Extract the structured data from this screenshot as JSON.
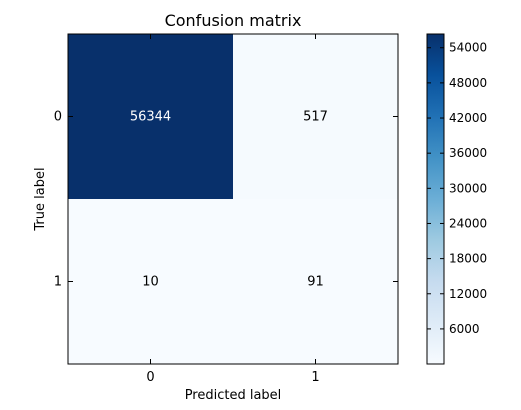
{
  "chart_data": {
    "type": "heatmap",
    "title": "Confusion matrix",
    "xlabel": "Predicted label",
    "ylabel": "True label",
    "x_categories": [
      "0",
      "1"
    ],
    "y_categories": [
      "0",
      "1"
    ],
    "matrix": [
      [
        56344,
        517
      ],
      [
        10,
        91
      ]
    ],
    "colormap": "Blues",
    "color_range": [
      10,
      56344
    ],
    "colorbar_ticks": [
      {
        "value": 6000,
        "label": "6000"
      },
      {
        "value": 12000,
        "label": "12000"
      },
      {
        "value": 18000,
        "label": "18000"
      },
      {
        "value": 24000,
        "label": "24000"
      },
      {
        "value": 30000,
        "label": "30000"
      },
      {
        "value": 36000,
        "label": "36000"
      },
      {
        "value": 42000,
        "label": "42000"
      },
      {
        "value": 48000,
        "label": "48000"
      },
      {
        "value": 54000,
        "label": "54000"
      }
    ],
    "grid": false
  }
}
